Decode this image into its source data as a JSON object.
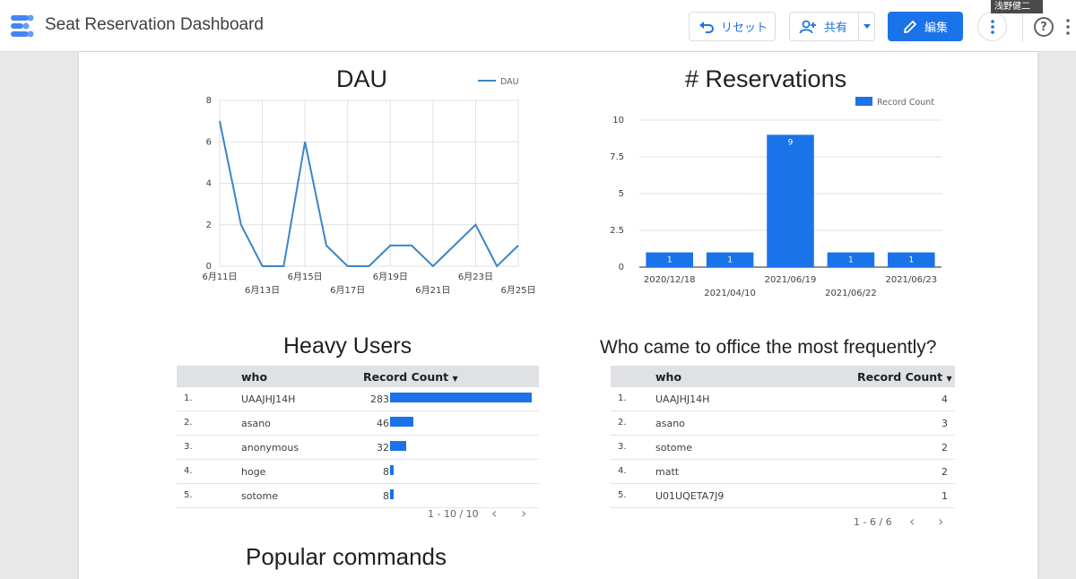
{
  "header": {
    "title": "Seat Reservation Dashboard",
    "reset_label": "リセット",
    "share_label": "共有",
    "edit_label": "編集",
    "user_name_tag": "浅野健二",
    "help_glyph": "?"
  },
  "colors": {
    "accent": "#1a73e8",
    "chart_line": "#3d85c6",
    "bar": "#1a73e8"
  },
  "dau_chart": {
    "title": "DAU",
    "chart_data": {
      "type": "line",
      "legend": "DAU",
      "legend_position": "top-right",
      "x": [
        "6月11日",
        "6月12日",
        "6月13日",
        "6月14日",
        "6月15日",
        "6月16日",
        "6月17日",
        "6月18日",
        "6月19日",
        "6月20日",
        "6月21日",
        "6月22日",
        "6月23日",
        "6月24日",
        "6月25日"
      ],
      "x_tick_labels": [
        "6月11日",
        "6月13日",
        "6月15日",
        "6月17日",
        "6月19日",
        "6月21日",
        "6月23日",
        "6月25日"
      ],
      "values": [
        7,
        2,
        0,
        0,
        6,
        1,
        0,
        0,
        1,
        1,
        0,
        1,
        2,
        0,
        1
      ],
      "y_ticks": [
        "0",
        "2",
        "4",
        "6",
        "8"
      ],
      "ylim": [
        0,
        8
      ],
      "grid": true
    }
  },
  "reservations_chart": {
    "title": "# Reservations",
    "chart_data": {
      "type": "bar",
      "legend": "Record Count",
      "legend_position": "top-right",
      "categories": [
        "2020/12/18",
        "2021/04/10",
        "2021/06/19",
        "2021/06/22",
        "2021/06/23"
      ],
      "values": [
        1,
        1,
        9,
        1,
        1
      ],
      "data_labels": [
        "1",
        "1",
        "9",
        "1",
        "1"
      ],
      "y_ticks": [
        "0",
        "2.5",
        "5",
        "7.5",
        "10"
      ],
      "ylim": [
        0,
        10
      ],
      "grid": true
    }
  },
  "heavy_users": {
    "title": "Heavy Users",
    "col_who": "who",
    "col_count": "Record Count",
    "max": 283,
    "rows": [
      {
        "idx": "1.",
        "who": "UAAJHJ14H",
        "count": 283
      },
      {
        "idx": "2.",
        "who": "asano",
        "count": 46
      },
      {
        "idx": "3.",
        "who": "anonymous",
        "count": 32
      },
      {
        "idx": "4.",
        "who": "hoge",
        "count": 8
      },
      {
        "idx": "5.",
        "who": "sotome",
        "count": 8
      }
    ],
    "pager": "1 - 10 / 10"
  },
  "frequent": {
    "title": "Who came to office the most frequently?",
    "col_who": "who",
    "col_count": "Record Count",
    "rows": [
      {
        "idx": "1.",
        "who": "UAAJHJ14H",
        "count": "4"
      },
      {
        "idx": "2.",
        "who": "asano",
        "count": "3"
      },
      {
        "idx": "3.",
        "who": "sotome",
        "count": "2"
      },
      {
        "idx": "4.",
        "who": "matt",
        "count": "2"
      },
      {
        "idx": "5.",
        "who": "U01UQETA7J9",
        "count": "1"
      }
    ],
    "pager": "1 - 6 / 6"
  },
  "popular_commands": {
    "title": "Popular commands"
  }
}
